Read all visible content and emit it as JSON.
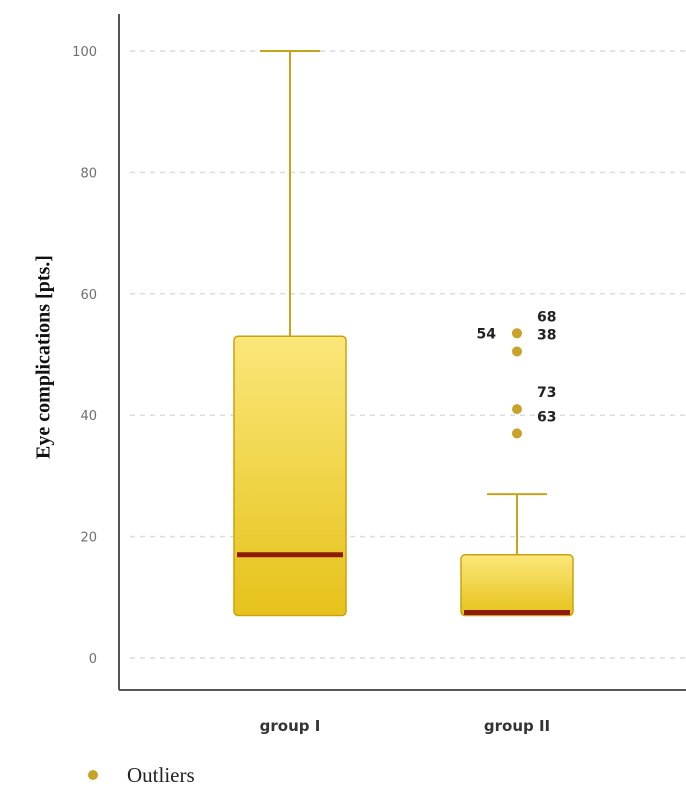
{
  "chart_data": {
    "type": "box",
    "title": "",
    "xlabel": "",
    "ylabel": "Eye complications [pts.]",
    "ylim": [
      0,
      100
    ],
    "yticks": [
      0,
      20,
      40,
      60,
      80,
      100
    ],
    "grid": true,
    "categories": [
      "group I",
      "group II"
    ],
    "boxes": [
      {
        "name": "group I",
        "whisker_low": 7,
        "q1": 7,
        "median": 17,
        "q3": 53,
        "whisker_high": 100
      },
      {
        "name": "group II",
        "whisker_low": 7,
        "q1": 7,
        "median": 7,
        "q3": 17,
        "whisker_high": 27
      }
    ],
    "outliers": [
      {
        "category": "group II",
        "y": 53.5,
        "label": "68",
        "label_side": "right-above"
      },
      {
        "category": "group II",
        "y": 53.5,
        "label": "54",
        "label_side": "left"
      },
      {
        "category": "group II",
        "y": 50.5,
        "label": "38",
        "label_side": "right-above"
      },
      {
        "category": "group II",
        "y": 41,
        "label": "73",
        "label_side": "right-above"
      },
      {
        "category": "group II",
        "y": 37,
        "label": "63",
        "label_side": "right-above"
      }
    ],
    "legend": {
      "label": "Outliers",
      "position": "bottom-left"
    },
    "colors": {
      "box_fill_top": "#fbe77a",
      "box_fill_bottom": "#e6c21a",
      "box_stroke": "#c9a30f",
      "median": "#8e1a0a",
      "whisker": "#c9a41b",
      "outlier": "#c9a22a",
      "axis": "#555555"
    }
  }
}
